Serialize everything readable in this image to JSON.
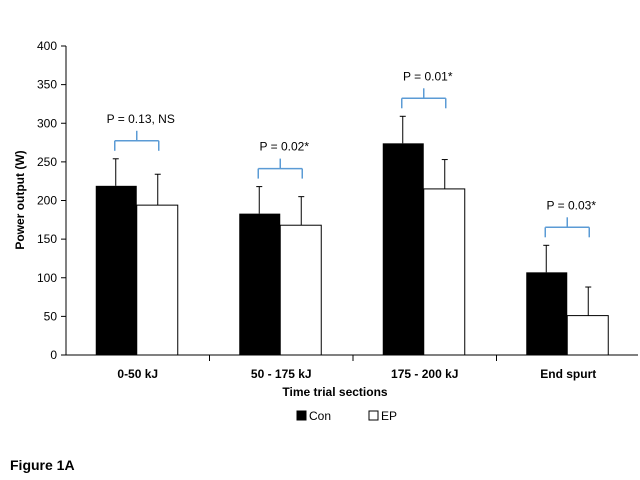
{
  "figure_label": "Figure 1A",
  "chart_data": {
    "type": "bar",
    "xlabel": "Time trial sections",
    "ylabel": "Power output (W)",
    "ylim": [
      0,
      400
    ],
    "yticks": [
      "0",
      "50",
      "100",
      "150",
      "200",
      "250",
      "300",
      "350",
      "400"
    ],
    "categories": [
      "0-50 kJ",
      "50 - 175 kJ",
      "175 - 200 kJ",
      "End spurt"
    ],
    "series": [
      {
        "name": "Con",
        "color": "#000000",
        "values": [
          219,
          183,
          274,
          107
        ],
        "errors": [
          35,
          35,
          35,
          35
        ]
      },
      {
        "name": "EP",
        "color": "#ffffff",
        "values": [
          194,
          168,
          215,
          51
        ],
        "errors": [
          40,
          37,
          38,
          37
        ]
      }
    ],
    "annotations": [
      "P = 0.13, NS",
      "P = 0.02*",
      "P = 0.01*",
      "P = 0.03*"
    ],
    "legend_position": "bottom",
    "grid": false,
    "bracket_color": "#5b9bd5"
  }
}
